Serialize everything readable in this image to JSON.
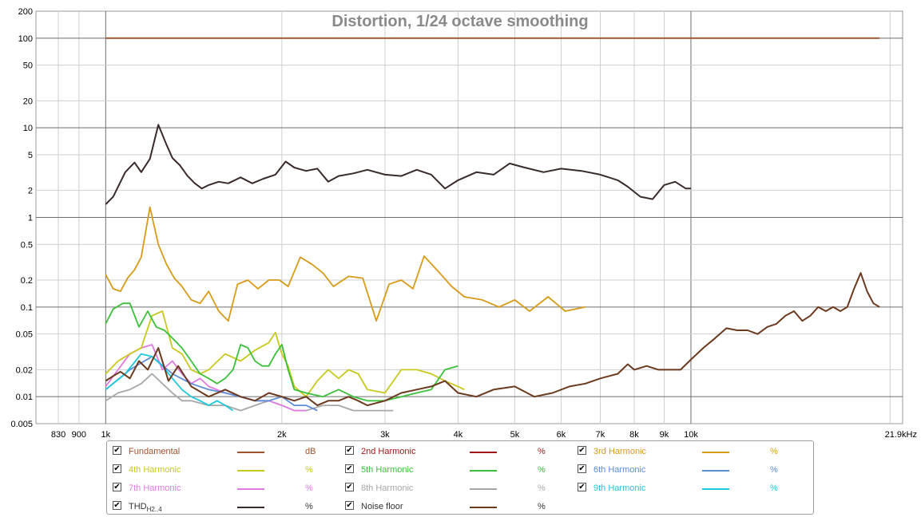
{
  "chart_data": {
    "type": "line",
    "title": "Distortion, 1/24 octave smoothing",
    "x_scale": "log",
    "y_scale": "log",
    "xlim": [
      760,
      23000
    ],
    "ylim": [
      0.005,
      200
    ],
    "x_ticks": [
      {
        "value": 830,
        "label": "830"
      },
      {
        "value": 900,
        "label": "900"
      },
      {
        "value": 1000,
        "label": "1k"
      },
      {
        "value": 2000,
        "label": "2k"
      },
      {
        "value": 3000,
        "label": "3k"
      },
      {
        "value": 4000,
        "label": "4k"
      },
      {
        "value": 5000,
        "label": "5k"
      },
      {
        "value": 6000,
        "label": "6k"
      },
      {
        "value": 7000,
        "label": "7k"
      },
      {
        "value": 8000,
        "label": "8k"
      },
      {
        "value": 9000,
        "label": "9k"
      },
      {
        "value": 10000,
        "label": "10k"
      },
      {
        "value": 21900,
        "label": "21.9kHz"
      }
    ],
    "y_ticks": [
      {
        "value": 200,
        "label": "200"
      },
      {
        "value": 100,
        "label": "100"
      },
      {
        "value": 50,
        "label": "50"
      },
      {
        "value": 20,
        "label": "20"
      },
      {
        "value": 10,
        "label": "10"
      },
      {
        "value": 5,
        "label": "5"
      },
      {
        "value": 2,
        "label": "2"
      },
      {
        "value": 1,
        "label": "1"
      },
      {
        "value": 0.5,
        "label": "0.5"
      },
      {
        "value": 0.2,
        "label": "0.2"
      },
      {
        "value": 0.1,
        "label": "0.1"
      },
      {
        "value": 0.05,
        "label": "0.05"
      },
      {
        "value": 0.02,
        "label": "0.02"
      },
      {
        "value": 0.01,
        "label": "0.01"
      },
      {
        "value": 0.005,
        "label": "0.005"
      }
    ],
    "grid": true,
    "series": [
      {
        "name": "Fundamental",
        "unit": "dB",
        "color": "#a0522d",
        "x": [
          1000,
          21000
        ],
        "y": [
          100,
          100
        ]
      },
      {
        "name": "THD",
        "unit": "%",
        "color": "#3a2a2a",
        "x": [
          1000,
          1030,
          1080,
          1120,
          1150,
          1190,
          1230,
          1270,
          1300,
          1340,
          1380,
          1420,
          1460,
          1500,
          1560,
          1620,
          1700,
          1780,
          1860,
          1950,
          2030,
          2100,
          2200,
          2300,
          2400,
          2500,
          2650,
          2800,
          3000,
          3200,
          3400,
          3600,
          3800,
          4000,
          4300,
          4600,
          4900,
          5200,
          5600,
          6000,
          6500,
          7000,
          7500,
          7800,
          8200,
          8600,
          9000,
          9400,
          9800,
          10000
        ],
        "y": [
          1.4,
          1.7,
          3.2,
          4.1,
          3.2,
          4.5,
          10.8,
          6.5,
          4.6,
          3.8,
          2.9,
          2.4,
          2.1,
          2.3,
          2.5,
          2.4,
          2.8,
          2.4,
          2.7,
          3.0,
          4.2,
          3.6,
          3.3,
          3.5,
          2.5,
          2.9,
          3.1,
          3.4,
          3.0,
          2.9,
          3.4,
          3.0,
          2.1,
          2.6,
          3.2,
          3.0,
          4.0,
          3.6,
          3.2,
          3.5,
          3.3,
          3.0,
          2.6,
          2.2,
          1.7,
          1.6,
          2.3,
          2.5,
          2.1,
          2.1
        ]
      },
      {
        "name": "3rd Harmonic",
        "unit": "%",
        "color": "#d79b17",
        "x": [
          1000,
          1030,
          1060,
          1090,
          1120,
          1150,
          1190,
          1230,
          1270,
          1310,
          1350,
          1400,
          1450,
          1500,
          1560,
          1620,
          1680,
          1750,
          1820,
          1900,
          1980,
          2050,
          2150,
          2250,
          2350,
          2450,
          2600,
          2750,
          2900,
          3050,
          3200,
          3350,
          3500,
          3700,
          3900,
          4100,
          4400,
          4700,
          5000,
          5300,
          5700,
          6100,
          6600
        ],
        "y": [
          0.23,
          0.16,
          0.15,
          0.21,
          0.26,
          0.36,
          1.3,
          0.5,
          0.3,
          0.21,
          0.17,
          0.12,
          0.11,
          0.15,
          0.09,
          0.07,
          0.18,
          0.2,
          0.16,
          0.2,
          0.2,
          0.17,
          0.36,
          0.3,
          0.24,
          0.17,
          0.22,
          0.21,
          0.07,
          0.18,
          0.2,
          0.16,
          0.37,
          0.25,
          0.17,
          0.13,
          0.12,
          0.1,
          0.12,
          0.09,
          0.13,
          0.09,
          0.1
        ]
      },
      {
        "name": "4th Harmonic",
        "unit": "%",
        "color": "#c8c81e",
        "x": [
          1000,
          1050,
          1100,
          1150,
          1200,
          1250,
          1300,
          1350,
          1400,
          1450,
          1500,
          1600,
          1700,
          1800,
          1900,
          1950,
          2000,
          2050,
          2100,
          2200,
          2300,
          2400,
          2500,
          2600,
          2700,
          2800,
          3000,
          3200,
          3400,
          3600,
          3800,
          4000,
          4100
        ],
        "y": [
          0.018,
          0.025,
          0.03,
          0.035,
          0.08,
          0.09,
          0.035,
          0.03,
          0.02,
          0.018,
          0.02,
          0.03,
          0.025,
          0.033,
          0.04,
          0.052,
          0.03,
          0.022,
          0.013,
          0.01,
          0.015,
          0.02,
          0.016,
          0.02,
          0.018,
          0.012,
          0.011,
          0.02,
          0.02,
          0.018,
          0.015,
          0.013,
          0.012
        ]
      },
      {
        "name": "5th Harmonic",
        "unit": "%",
        "color": "#3cc03c",
        "x": [
          1000,
          1030,
          1070,
          1100,
          1140,
          1180,
          1220,
          1260,
          1300,
          1350,
          1400,
          1450,
          1500,
          1550,
          1600,
          1650,
          1700,
          1750,
          1800,
          1850,
          1900,
          1950,
          2000,
          2050,
          2100,
          2200,
          2350,
          2500,
          2650,
          2800,
          3000,
          3200,
          3400,
          3600,
          3800,
          4000
        ],
        "y": [
          0.065,
          0.095,
          0.11,
          0.11,
          0.06,
          0.09,
          0.06,
          0.055,
          0.045,
          0.035,
          0.025,
          0.018,
          0.016,
          0.014,
          0.016,
          0.02,
          0.038,
          0.035,
          0.025,
          0.022,
          0.022,
          0.03,
          0.038,
          0.02,
          0.012,
          0.011,
          0.01,
          0.012,
          0.01,
          0.009,
          0.009,
          0.01,
          0.011,
          0.012,
          0.02,
          0.022
        ]
      },
      {
        "name": "6th Harmonic",
        "unit": "%",
        "color": "#5b8cd8",
        "x": [
          1000,
          1100,
          1200,
          1300,
          1400,
          1500,
          1600,
          1700,
          1800,
          1900,
          2000,
          2100,
          2200,
          2300
        ],
        "y": [
          0.012,
          0.02,
          0.028,
          0.018,
          0.014,
          0.012,
          0.011,
          0.01,
          0.009,
          0.009,
          0.01,
          0.008,
          0.008,
          0.007
        ]
      },
      {
        "name": "7th Harmonic",
        "unit": "%",
        "color": "#e07ae0",
        "x": [
          1000,
          1050,
          1100,
          1150,
          1200,
          1250,
          1300,
          1350,
          1400,
          1450,
          1500,
          1600,
          1700,
          1800,
          1900,
          2000,
          2100,
          2200
        ],
        "y": [
          0.013,
          0.02,
          0.03,
          0.035,
          0.038,
          0.02,
          0.025,
          0.018,
          0.014,
          0.016,
          0.013,
          0.011,
          0.01,
          0.009,
          0.009,
          0.008,
          0.007,
          0.007
        ]
      },
      {
        "name": "8th Harmonic",
        "unit": "%",
        "color": "#a8a8a8",
        "x": [
          1000,
          1050,
          1100,
          1150,
          1200,
          1250,
          1300,
          1350,
          1400,
          1500,
          1600,
          1700,
          1800,
          1900,
          2000,
          2100,
          2200,
          2350,
          2500,
          2650,
          2800,
          3000,
          3100
        ],
        "y": [
          0.009,
          0.011,
          0.012,
          0.014,
          0.018,
          0.014,
          0.011,
          0.009,
          0.009,
          0.008,
          0.008,
          0.007,
          0.008,
          0.009,
          0.008,
          0.007,
          0.007,
          0.008,
          0.008,
          0.007,
          0.007,
          0.007,
          0.007
        ]
      },
      {
        "name": "9th Harmonic",
        "unit": "%",
        "color": "#1ec8dc",
        "x": [
          1000,
          1080,
          1150,
          1200,
          1250,
          1300,
          1350,
          1400,
          1450,
          1500,
          1550,
          1600,
          1650
        ],
        "y": [
          0.012,
          0.018,
          0.03,
          0.028,
          0.022,
          0.016,
          0.012,
          0.01,
          0.009,
          0.008,
          0.009,
          0.008,
          0.007
        ]
      },
      {
        "name": "Noise floor",
        "unit": "%",
        "color": "#6b3a1e",
        "x": [
          1000,
          1030,
          1060,
          1100,
          1140,
          1180,
          1230,
          1280,
          1330,
          1400,
          1500,
          1600,
          1700,
          1800,
          1900,
          2000,
          2100,
          2200,
          2300,
          2400,
          2500,
          2600,
          2700,
          2800,
          3000,
          3200,
          3400,
          3600,
          3800,
          4000,
          4300,
          4600,
          5000,
          5400,
          5800,
          6200,
          6600,
          7000,
          7500,
          7800,
          8000,
          8400,
          8800,
          9200,
          9600,
          10000,
          10500,
          11000,
          11500,
          12000,
          12500,
          13000,
          13500,
          14000,
          14500,
          15000,
          15500,
          16000,
          16500,
          17000,
          17500,
          18000,
          18500,
          19000,
          19500,
          20000,
          20500,
          21000
        ],
        "y": [
          0.015,
          0.017,
          0.019,
          0.016,
          0.025,
          0.02,
          0.035,
          0.015,
          0.022,
          0.013,
          0.01,
          0.012,
          0.01,
          0.009,
          0.011,
          0.01,
          0.009,
          0.01,
          0.008,
          0.009,
          0.009,
          0.01,
          0.009,
          0.008,
          0.009,
          0.011,
          0.012,
          0.013,
          0.015,
          0.011,
          0.01,
          0.012,
          0.013,
          0.01,
          0.011,
          0.013,
          0.014,
          0.016,
          0.018,
          0.023,
          0.02,
          0.022,
          0.02,
          0.02,
          0.02,
          0.026,
          0.035,
          0.045,
          0.058,
          0.055,
          0.055,
          0.05,
          0.06,
          0.065,
          0.08,
          0.09,
          0.07,
          0.08,
          0.1,
          0.09,
          0.1,
          0.09,
          0.1,
          0.16,
          0.24,
          0.15,
          0.11,
          0.1
        ]
      }
    ]
  },
  "legend": {
    "items": [
      {
        "label": "Fundamental",
        "unit": "dB",
        "color": "#a0522d",
        "checked": true
      },
      {
        "label": "2nd Harmonic",
        "unit": "%",
        "color": "#a01818",
        "checked": true
      },
      {
        "label": "3rd Harmonic",
        "unit": "%",
        "color": "#d79b17",
        "checked": true
      },
      {
        "label": "4th Harmonic",
        "unit": "%",
        "color": "#c8c81e",
        "checked": true
      },
      {
        "label": "5th Harmonic",
        "unit": "%",
        "color": "#3cc03c",
        "checked": true
      },
      {
        "label": "6th Harmonic",
        "unit": "%",
        "color": "#5b8cd8",
        "checked": true
      },
      {
        "label": "7th Harmonic",
        "unit": "%",
        "color": "#e07ae0",
        "checked": true
      },
      {
        "label": "8th Harmonic",
        "unit": "%",
        "color": "#a8a8a8",
        "checked": true
      },
      {
        "label": "9th Harmonic",
        "unit": "%",
        "color": "#1ec8dc",
        "checked": true
      },
      {
        "label": "THD",
        "sub": "H2..4",
        "unit": "%",
        "color": "#3a2a2a",
        "checked": true
      },
      {
        "label": "Noise floor",
        "unit": "%",
        "color": "#6b3a1e",
        "checked": true
      }
    ]
  }
}
